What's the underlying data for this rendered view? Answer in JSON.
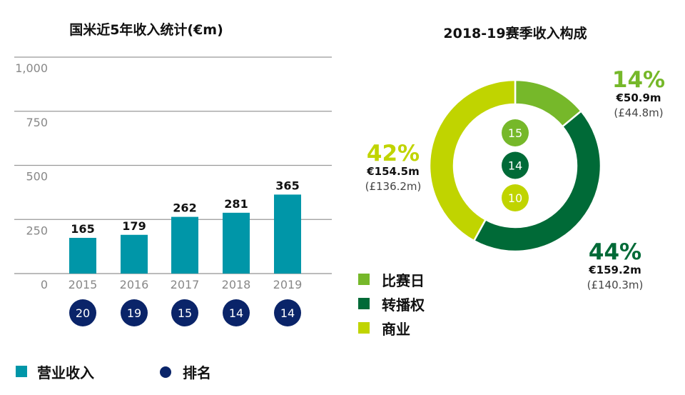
{
  "chart_data": [
    {
      "type": "bar",
      "title": "国米近5年收入统计(€m)",
      "categories": [
        "2015",
        "2016",
        "2017",
        "2018",
        "2019"
      ],
      "series": [
        {
          "name": "营业收入",
          "values": [
            165,
            179,
            262,
            281,
            365
          ],
          "color": "#0096a8"
        },
        {
          "name": "排名",
          "values": [
            20,
            19,
            15,
            14,
            14
          ],
          "color": "#0a2469"
        }
      ],
      "yticks": [
        "0",
        "250",
        "500",
        "750",
        "1,000"
      ],
      "ylim": [
        0,
        1000
      ],
      "grid": true,
      "legend": "bottom-left"
    },
    {
      "type": "pie",
      "title": "2018-19赛季收入构成",
      "donut": true,
      "slices": [
        {
          "label": "比赛日",
          "percent_label": "14%",
          "percent": 14,
          "eur": "€50.9m",
          "gbp": "(£44.8m)",
          "rank": "15",
          "color": "#76b82a"
        },
        {
          "label": "转播权",
          "percent_label": "44%",
          "percent": 44,
          "eur": "€159.2m",
          "gbp": "(£140.3m)",
          "rank": "14",
          "color": "#006a37"
        },
        {
          "label": "商业",
          "percent_label": "42%",
          "percent": 42,
          "eur": "€154.5m",
          "gbp": "(£136.2m)",
          "rank": "10",
          "color": "#c0d400"
        }
      ],
      "legend": "bottom-left"
    }
  ]
}
